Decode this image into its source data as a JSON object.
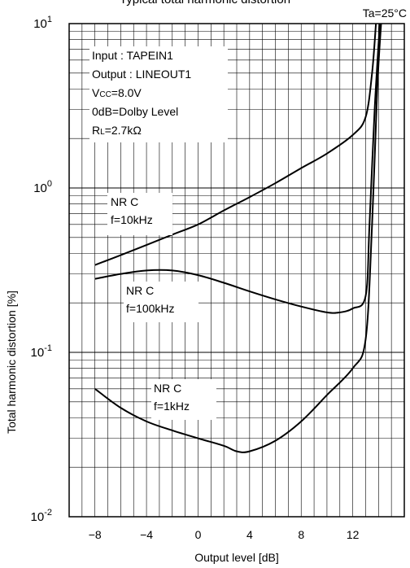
{
  "chart_data": {
    "type": "line",
    "title": "Typical total harmonic distortion",
    "corner_note": "Ta=25°C",
    "xlabel": "Output level [dB]",
    "ylabel": "Total harmonic distortion [%]",
    "xlim": [
      -10,
      16
    ],
    "ylim": [
      0.01,
      10
    ],
    "y_scale": "log",
    "grid": true,
    "x_ticks": [
      -8,
      -4,
      0,
      4,
      8,
      12
    ],
    "x_tick_labels": [
      "−8",
      "−4",
      "0",
      "4",
      "8",
      "12"
    ],
    "y_ticks": [
      {
        "value": 10,
        "base": "10",
        "exp": "1"
      },
      {
        "value": 1,
        "base": "10",
        "exp": "0"
      },
      {
        "value": 0.1,
        "base": "10",
        "exp": "-1"
      },
      {
        "value": 0.01,
        "base": "10",
        "exp": "-2"
      }
    ],
    "conditions": {
      "input": "Input : TAPEIN1",
      "output": "Output : LINEOUT1",
      "vcc": "V",
      "vcc_sub": "CC",
      "vcc_value": "=8.0V",
      "zero_db": "0dB=Dolby Level",
      "rl": "R",
      "rl_sub": "L",
      "rl_value": "=2.7kΩ"
    },
    "series": [
      {
        "name": "NR C f=10kHz",
        "label_line1": "NR C",
        "label_line2": "f=10kHz",
        "points": [
          [
            -8,
            0.34
          ],
          [
            -6,
            0.39
          ],
          [
            -4,
            0.45
          ],
          [
            -2,
            0.52
          ],
          [
            0,
            0.6
          ],
          [
            2,
            0.73
          ],
          [
            4,
            0.88
          ],
          [
            6,
            1.07
          ],
          [
            8,
            1.32
          ],
          [
            10,
            1.62
          ],
          [
            12,
            2.1
          ],
          [
            13,
            2.7
          ],
          [
            13.5,
            5.0
          ],
          [
            13.8,
            10.0
          ]
        ]
      },
      {
        "name": "NR C f=100kHz",
        "label_line1": "NR C",
        "label_line2": "f=100kHz",
        "points": [
          [
            -8,
            0.28
          ],
          [
            -6,
            0.3
          ],
          [
            -4,
            0.315
          ],
          [
            -2,
            0.315
          ],
          [
            0,
            0.295
          ],
          [
            2,
            0.265
          ],
          [
            4,
            0.235
          ],
          [
            6,
            0.21
          ],
          [
            8,
            0.19
          ],
          [
            10,
            0.175
          ],
          [
            11,
            0.175
          ],
          [
            12,
            0.185
          ],
          [
            13,
            0.22
          ],
          [
            13.3,
            0.6
          ],
          [
            13.7,
            3.0
          ],
          [
            14.1,
            10.0
          ]
        ]
      },
      {
        "name": "NR C f=1kHz",
        "label_line1": "NR C",
        "label_line2": "f=1kHz",
        "points": [
          [
            -8,
            0.06
          ],
          [
            -6,
            0.046
          ],
          [
            -4,
            0.038
          ],
          [
            -2,
            0.0335
          ],
          [
            0,
            0.03
          ],
          [
            2,
            0.027
          ],
          [
            3,
            0.025
          ],
          [
            4,
            0.025
          ],
          [
            6,
            0.029
          ],
          [
            8,
            0.038
          ],
          [
            10,
            0.055
          ],
          [
            12,
            0.08
          ],
          [
            13,
            0.12
          ],
          [
            13.5,
            0.6
          ],
          [
            13.9,
            4.0
          ],
          [
            14.2,
            10.0
          ]
        ]
      }
    ]
  }
}
